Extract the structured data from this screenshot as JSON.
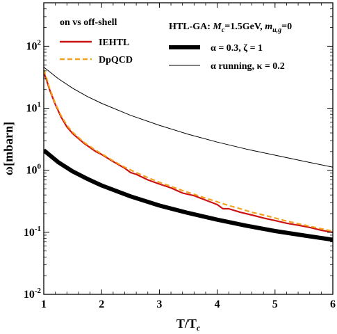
{
  "chart_data": {
    "type": "line",
    "xlabel": "T/T",
    "xlabel_sub": "c",
    "ylabel": "ω[mbarn]",
    "xlim": [
      1,
      6
    ],
    "ylim_log10": [
      -2,
      2.7
    ],
    "yscale": "log",
    "x_ticks": [
      {
        "v": 1,
        "label": "1"
      },
      {
        "v": 2,
        "label": "2"
      },
      {
        "v": 3,
        "label": "3"
      },
      {
        "v": 4,
        "label": "4"
      },
      {
        "v": 5,
        "label": "5"
      },
      {
        "v": 6,
        "label": "6"
      }
    ],
    "y_ticks": [
      {
        "v": -2,
        "base": "10",
        "exp": "-2"
      },
      {
        "v": -1,
        "base": "10",
        "exp": "-1"
      },
      {
        "v": 0,
        "base": "10",
        "exp": "0"
      },
      {
        "v": 1,
        "base": "10",
        "exp": "1"
      },
      {
        "v": 2,
        "base": "10",
        "exp": "2"
      }
    ],
    "legend_left": {
      "title": "on vs off-shell",
      "entries": [
        {
          "label": "IEHTL",
          "color": "#cc1111",
          "dash": "none",
          "width": 2.5
        },
        {
          "label": "DpQCD",
          "color": "#f4a11d",
          "dash": "7,4",
          "width": 2.5
        }
      ]
    },
    "legend_right": {
      "title_parts": [
        "HTL-GA: ",
        "M",
        "c",
        "=1.5GeV, ",
        "m",
        "u,g",
        "=0"
      ],
      "entries": [
        {
          "label": "α = 0.3, ζ = 1",
          "color": "#000000",
          "dash": "none",
          "width": 6
        },
        {
          "label": "α running, κ = 0.2",
          "color": "#000000",
          "dash": "none",
          "width": 1
        }
      ]
    },
    "series": [
      {
        "name": "IEHTL",
        "color": "#cc1111",
        "dash": "none",
        "width": 2.2,
        "x": [
          1.0,
          1.05,
          1.1,
          1.2,
          1.3,
          1.4,
          1.5,
          1.7,
          1.9,
          2.0,
          2.2,
          2.4,
          2.5,
          2.6,
          2.8,
          3.0,
          3.2,
          3.4,
          3.6,
          3.8,
          4.0,
          4.1,
          4.2,
          4.4,
          4.6,
          4.8,
          5.0,
          5.2,
          5.4,
          5.6,
          5.8,
          6.0
        ],
        "y": [
          38,
          28,
          20,
          11.5,
          7.2,
          5.0,
          3.9,
          2.7,
          2.0,
          1.8,
          1.38,
          1.08,
          0.92,
          0.86,
          0.7,
          0.6,
          0.52,
          0.43,
          0.39,
          0.33,
          0.28,
          0.24,
          0.24,
          0.21,
          0.19,
          0.17,
          0.155,
          0.14,
          0.13,
          0.12,
          0.108,
          0.1
        ]
      },
      {
        "name": "DpQCD",
        "color": "#f4a11d",
        "dash": "7,4",
        "width": 2.2,
        "x": [
          1.0,
          1.05,
          1.1,
          1.2,
          1.3,
          1.4,
          1.5,
          1.7,
          1.9,
          2.0,
          2.2,
          2.4,
          2.6,
          2.8,
          3.0,
          3.2,
          3.4,
          3.6,
          3.8,
          4.0,
          4.2,
          4.4,
          4.6,
          4.8,
          5.0,
          5.2,
          5.4,
          5.6,
          5.8,
          6.0
        ],
        "y": [
          42,
          30,
          21,
          12.0,
          7.6,
          5.3,
          4.1,
          2.8,
          2.1,
          1.85,
          1.42,
          1.12,
          0.92,
          0.76,
          0.64,
          0.55,
          0.47,
          0.41,
          0.355,
          0.31,
          0.27,
          0.24,
          0.21,
          0.19,
          0.17,
          0.152,
          0.138,
          0.125,
          0.114,
          0.104
        ]
      },
      {
        "name": "α = 0.3, ζ = 1",
        "color": "#000000",
        "dash": "none",
        "width": 6,
        "x": [
          1.0,
          1.25,
          1.5,
          1.75,
          2.0,
          2.5,
          3.0,
          3.5,
          4.0,
          4.5,
          5.0,
          5.5,
          6.0
        ],
        "y": [
          2.1,
          1.35,
          0.96,
          0.73,
          0.57,
          0.38,
          0.27,
          0.205,
          0.16,
          0.128,
          0.105,
          0.089,
          0.076
        ]
      },
      {
        "name": "α running, κ = 0.2",
        "color": "#000000",
        "dash": "none",
        "width": 1,
        "x": [
          1.0,
          1.25,
          1.5,
          1.75,
          2.0,
          2.5,
          3.0,
          3.5,
          4.0,
          4.5,
          5.0,
          5.5,
          6.0
        ],
        "y": [
          46,
          30,
          21,
          15.5,
          12.0,
          7.7,
          5.3,
          3.8,
          2.85,
          2.2,
          1.75,
          1.4,
          1.12
        ]
      }
    ]
  }
}
